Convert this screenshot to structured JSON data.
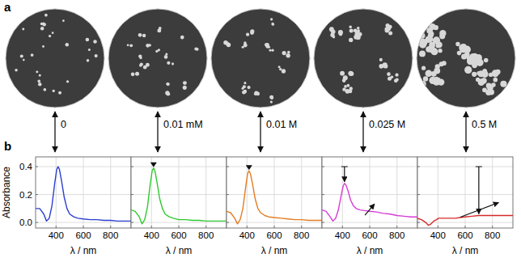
{
  "panel_labels": [
    "a",
    "b"
  ],
  "concentrations": [
    "0",
    "0.01 mM",
    "0.01 M",
    "0.025 M",
    "0.5 M"
  ],
  "chart_data": [
    {
      "type": "line",
      "x_label": "λ / nm",
      "y_label": "Absorbance",
      "x": [
        250,
        280,
        310,
        330,
        350,
        370,
        390,
        405,
        415,
        425,
        440,
        460,
        480,
        500,
        530,
        560,
        600,
        650,
        700,
        750,
        800,
        850,
        900,
        950
      ],
      "series": [
        {
          "color": "#2b3fd0",
          "values": [
            0.1,
            0.1,
            0.06,
            0.01,
            0.03,
            0.12,
            0.28,
            0.38,
            0.4,
            0.38,
            0.3,
            0.18,
            0.1,
            0.06,
            0.04,
            0.03,
            0.025,
            0.02,
            0.02,
            0.015,
            0.015,
            0.01,
            0.01,
            0.01
          ]
        }
      ],
      "xlim": [
        250,
        950
      ],
      "xticks": [
        400,
        600,
        800
      ],
      "ylim": [
        -0.04,
        0.47
      ],
      "yticks": [
        {
          "value": 0,
          "label": "0.0"
        },
        0.2,
        0.4
      ],
      "grid": true
    },
    {
      "type": "line",
      "x_label": "λ / nm",
      "x": [
        250,
        280,
        310,
        330,
        350,
        370,
        390,
        405,
        415,
        425,
        440,
        460,
        480,
        500,
        530,
        560,
        600,
        650,
        700,
        750,
        800,
        850,
        900,
        950
      ],
      "series": [
        {
          "color": "#2fc92f",
          "values": [
            0.09,
            0.08,
            0.04,
            -0.01,
            0.02,
            0.11,
            0.27,
            0.37,
            0.39,
            0.37,
            0.29,
            0.17,
            0.1,
            0.06,
            0.04,
            0.03,
            0.02,
            0.02,
            0.015,
            0.015,
            0.01,
            0.01,
            0.01,
            0.01
          ]
        }
      ],
      "xlim": [
        250,
        950
      ],
      "xticks": [
        400,
        600,
        800
      ],
      "ylim": [
        -0.04,
        0.47
      ],
      "yticks": [
        {
          "value": 0,
          "label": "0.0"
        },
        0.2,
        0.4
      ],
      "grid": true,
      "tick_labels": "x"
    },
    {
      "type": "line",
      "x_label": "λ / nm",
      "x": [
        250,
        280,
        310,
        330,
        350,
        370,
        390,
        405,
        415,
        425,
        440,
        460,
        480,
        500,
        530,
        560,
        600,
        650,
        700,
        750,
        800,
        850,
        900,
        950
      ],
      "series": [
        {
          "color": "#e27d22",
          "values": [
            0.08,
            0.07,
            0.03,
            -0.01,
            0.02,
            0.1,
            0.25,
            0.35,
            0.37,
            0.35,
            0.28,
            0.17,
            0.1,
            0.07,
            0.05,
            0.04,
            0.035,
            0.03,
            0.025,
            0.02,
            0.02,
            0.015,
            0.015,
            0.015
          ]
        }
      ],
      "xlim": [
        250,
        950
      ],
      "xticks": [
        400,
        600,
        800
      ],
      "ylim": [
        -0.04,
        0.47
      ],
      "yticks": [
        {
          "value": 0,
          "label": "0.0"
        },
        0.2,
        0.4
      ],
      "grid": true,
      "tick_labels": "x"
    },
    {
      "type": "line",
      "x_label": "λ / nm",
      "x": [
        250,
        280,
        310,
        330,
        350,
        370,
        390,
        405,
        415,
        425,
        440,
        460,
        480,
        500,
        530,
        560,
        600,
        650,
        700,
        750,
        800,
        850,
        900,
        950
      ],
      "series": [
        {
          "color": "#d63cd6",
          "values": [
            0.09,
            0.08,
            0.04,
            0.01,
            0.03,
            0.09,
            0.19,
            0.26,
            0.28,
            0.27,
            0.23,
            0.16,
            0.12,
            0.1,
            0.09,
            0.085,
            0.08,
            0.075,
            0.065,
            0.06,
            0.05,
            0.045,
            0.04,
            0.04
          ]
        }
      ],
      "xlim": [
        250,
        950
      ],
      "xticks": [
        400,
        600,
        800
      ],
      "ylim": [
        -0.04,
        0.47
      ],
      "yticks": [
        {
          "value": 0,
          "label": "0.0"
        },
        0.2,
        0.4
      ],
      "grid": true,
      "tick_labels": "x"
    },
    {
      "type": "line",
      "x_label": "λ / nm",
      "x": [
        250,
        280,
        310,
        330,
        350,
        370,
        390,
        405,
        415,
        425,
        440,
        460,
        480,
        500,
        530,
        560,
        600,
        650,
        700,
        750,
        800,
        850,
        900,
        950
      ],
      "series": [
        {
          "color": "#d62a2a",
          "values": [
            0.03,
            0.02,
            0.0,
            -0.02,
            -0.01,
            0.01,
            0.02,
            0.03,
            0.03,
            0.03,
            0.03,
            0.03,
            0.03,
            0.03,
            0.03,
            0.035,
            0.04,
            0.045,
            0.05,
            0.05,
            0.05,
            0.05,
            0.05,
            0.05
          ]
        }
      ],
      "xlim": [
        250,
        950
      ],
      "xticks": [
        400,
        600,
        800
      ],
      "ylim": [
        -0.04,
        0.47
      ],
      "yticks": [
        {
          "value": 0,
          "label": "0.0"
        },
        0.2,
        0.4
      ],
      "grid": true,
      "tick_labels": "x"
    }
  ]
}
